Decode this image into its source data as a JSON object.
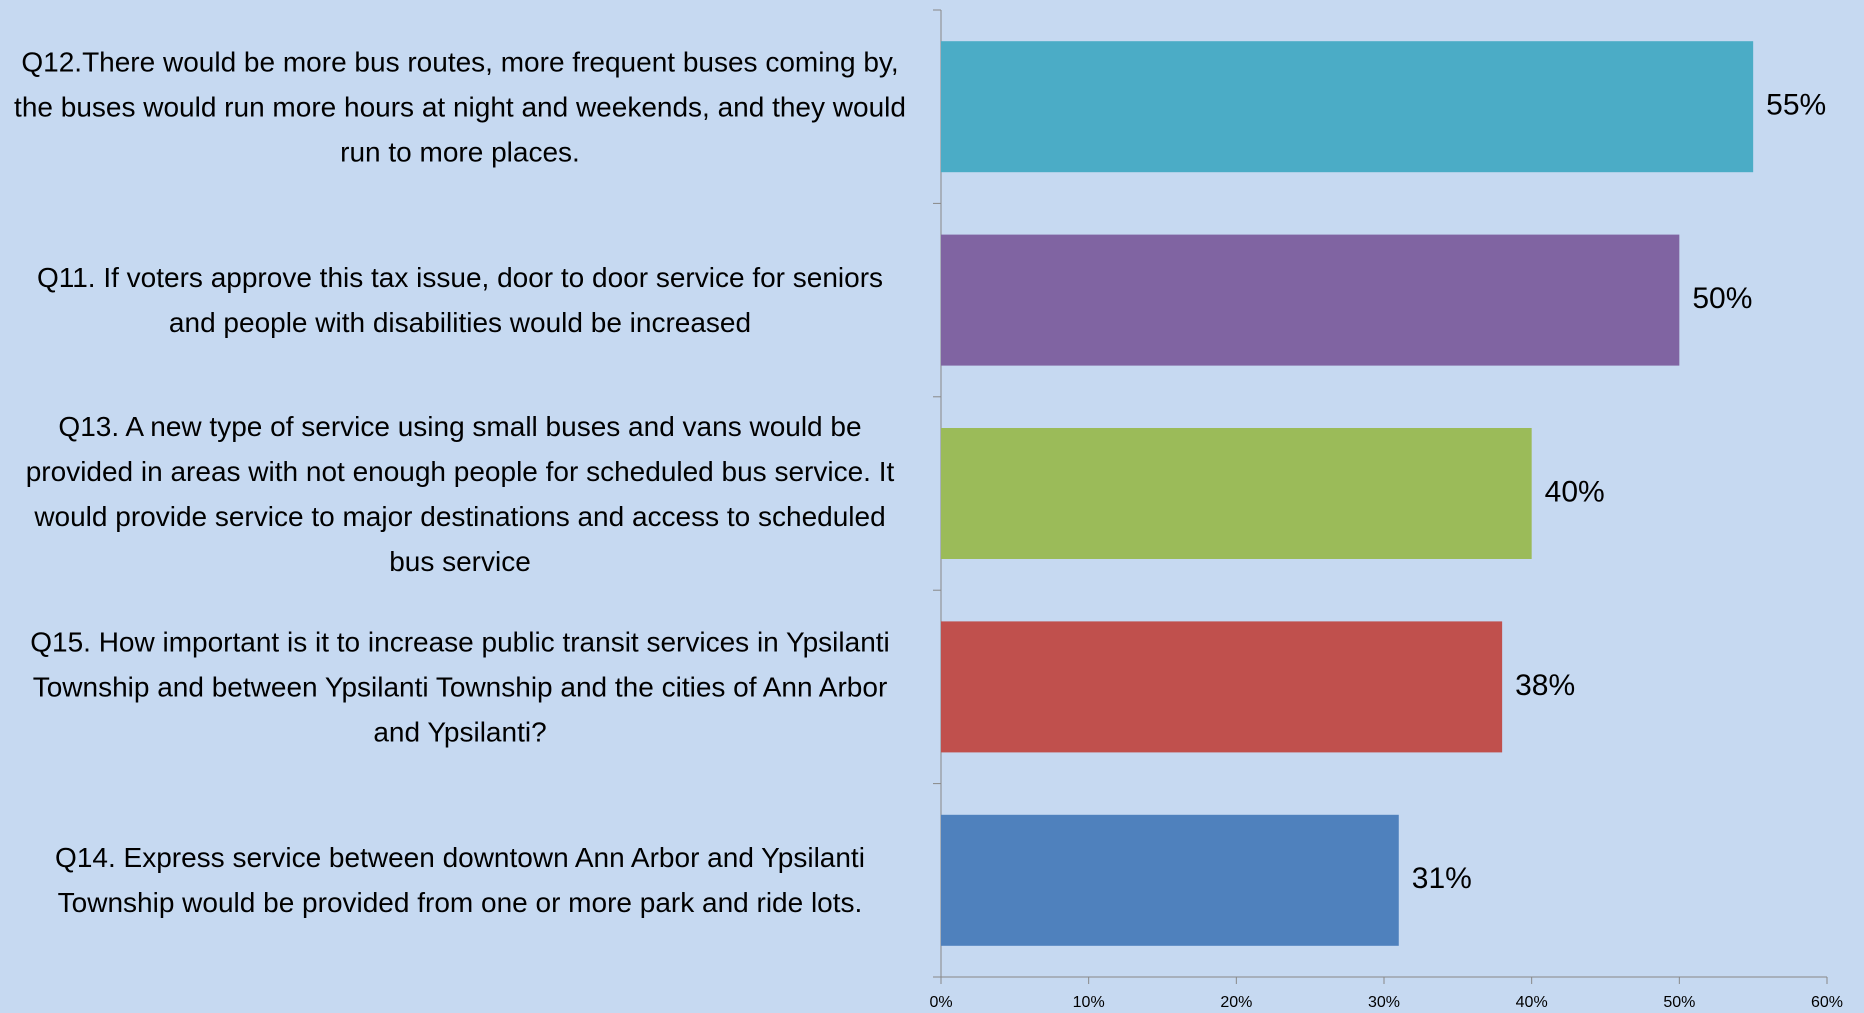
{
  "chart_data": {
    "type": "bar",
    "orientation": "horizontal",
    "categories": [
      "Q12.There would be more bus routes, more frequent buses coming by, the buses would run more hours at night and weekends, and they would run to more places.",
      "Q11. If voters approve this tax issue, door to door service for seniors and people with disabilities would be increased",
      "Q13. A new type of service using small buses and vans would be provided in areas with not enough people for scheduled bus service.  It would provide service to major destinations and access to scheduled bus service",
      "Q15. How important is it to increase public transit services in Ypsilanti Township and between Ypsilanti Township and the cities of Ann Arbor and Ypsilanti?",
      "Q14. Express service between downtown Ann Arbor and Ypsilanti Township would be provided from one or more park and ride lots."
    ],
    "values": [
      55,
      50,
      40,
      38,
      31
    ],
    "value_labels": [
      "55%",
      "50%",
      "40%",
      "38%",
      "31%"
    ],
    "colors": [
      "#4bacc6",
      "#8064a2",
      "#9bbb59",
      "#c0504d",
      "#4f81bd"
    ],
    "xlim": [
      0,
      60
    ],
    "xticks": [
      {
        "value": 0,
        "label": "0%"
      },
      {
        "value": 10,
        "label": "10%"
      },
      {
        "value": 20,
        "label": "20%"
      },
      {
        "value": 30,
        "label": "30%"
      },
      {
        "value": 40,
        "label": "40%"
      },
      {
        "value": 50,
        "label": "50%"
      },
      {
        "value": 60,
        "label": "60%"
      }
    ],
    "grid": false
  }
}
